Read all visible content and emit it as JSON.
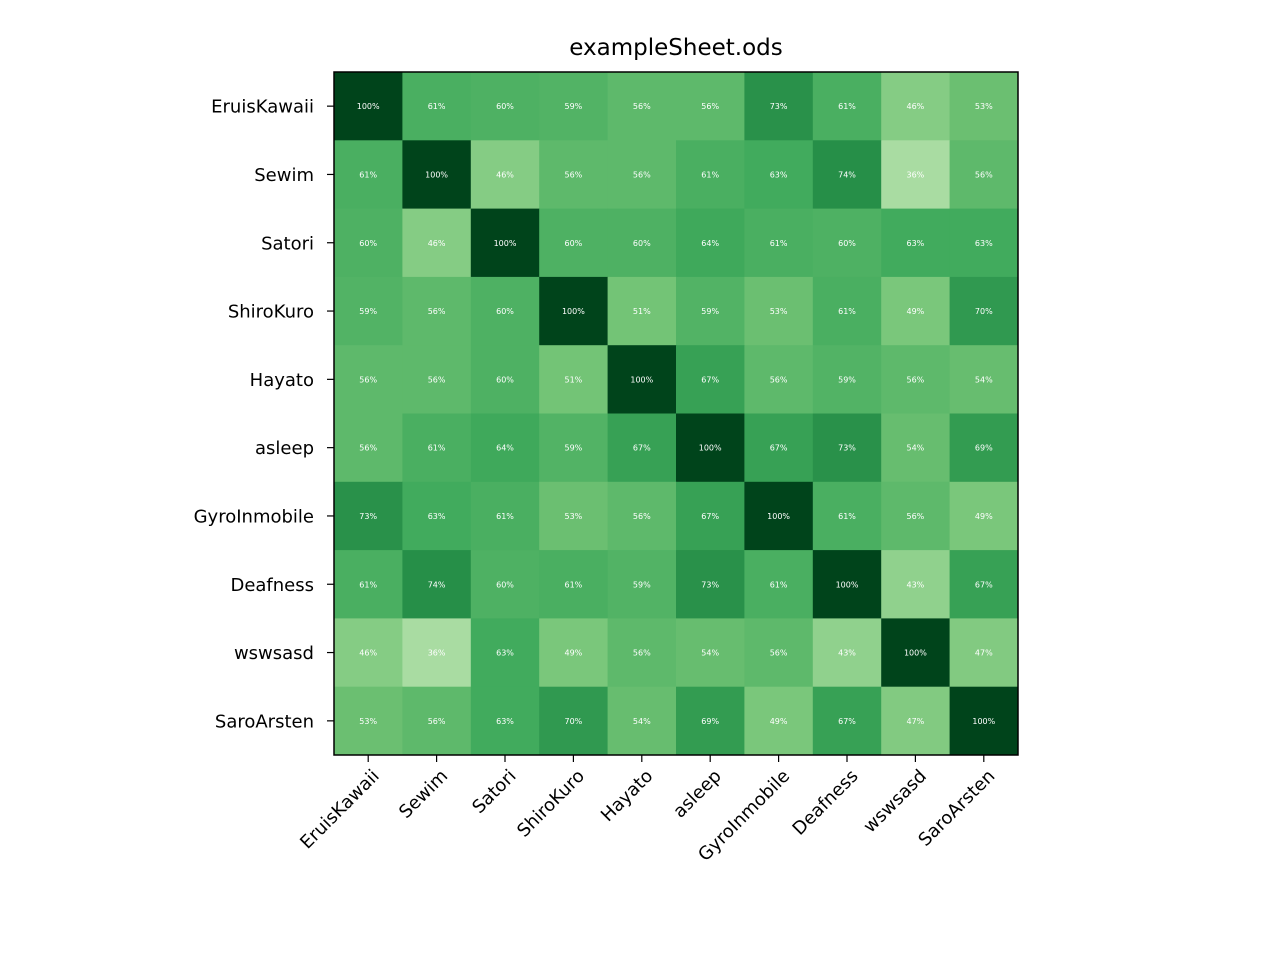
{
  "chart_data": {
    "type": "heatmap",
    "title": "exampleSheet.ods",
    "xlabel": "",
    "ylabel": "",
    "colormap": "Greens",
    "value_range": [
      0,
      100
    ],
    "value_suffix": "%",
    "row_labels": [
      "EruisKawaii",
      "Sewim",
      "Satori",
      "ShiroKuro",
      "Hayato",
      "asleep",
      "GyroInmobile",
      "Deafness",
      "wswsasd",
      "SaroArsten"
    ],
    "col_labels": [
      "EruisKawaii",
      "Sewim",
      "Satori",
      "ShiroKuro",
      "Hayato",
      "asleep",
      "GyroInmobile",
      "Deafness",
      "wswsasd",
      "SaroArsten"
    ],
    "values": [
      [
        100,
        61,
        60,
        59,
        56,
        56,
        73,
        61,
        46,
        53
      ],
      [
        61,
        100,
        46,
        56,
        56,
        61,
        63,
        74,
        36,
        56
      ],
      [
        60,
        46,
        100,
        60,
        60,
        64,
        61,
        60,
        63,
        63
      ],
      [
        59,
        56,
        60,
        100,
        51,
        59,
        53,
        61,
        49,
        70
      ],
      [
        56,
        56,
        60,
        51,
        100,
        67,
        56,
        59,
        56,
        54
      ],
      [
        56,
        61,
        64,
        59,
        67,
        100,
        67,
        73,
        54,
        69
      ],
      [
        73,
        63,
        61,
        53,
        56,
        67,
        100,
        61,
        56,
        49
      ],
      [
        61,
        74,
        60,
        61,
        59,
        73,
        61,
        100,
        43,
        67
      ],
      [
        46,
        36,
        63,
        49,
        56,
        54,
        56,
        43,
        100,
        47
      ],
      [
        53,
        56,
        63,
        70,
        54,
        69,
        49,
        67,
        47,
        100
      ]
    ]
  }
}
